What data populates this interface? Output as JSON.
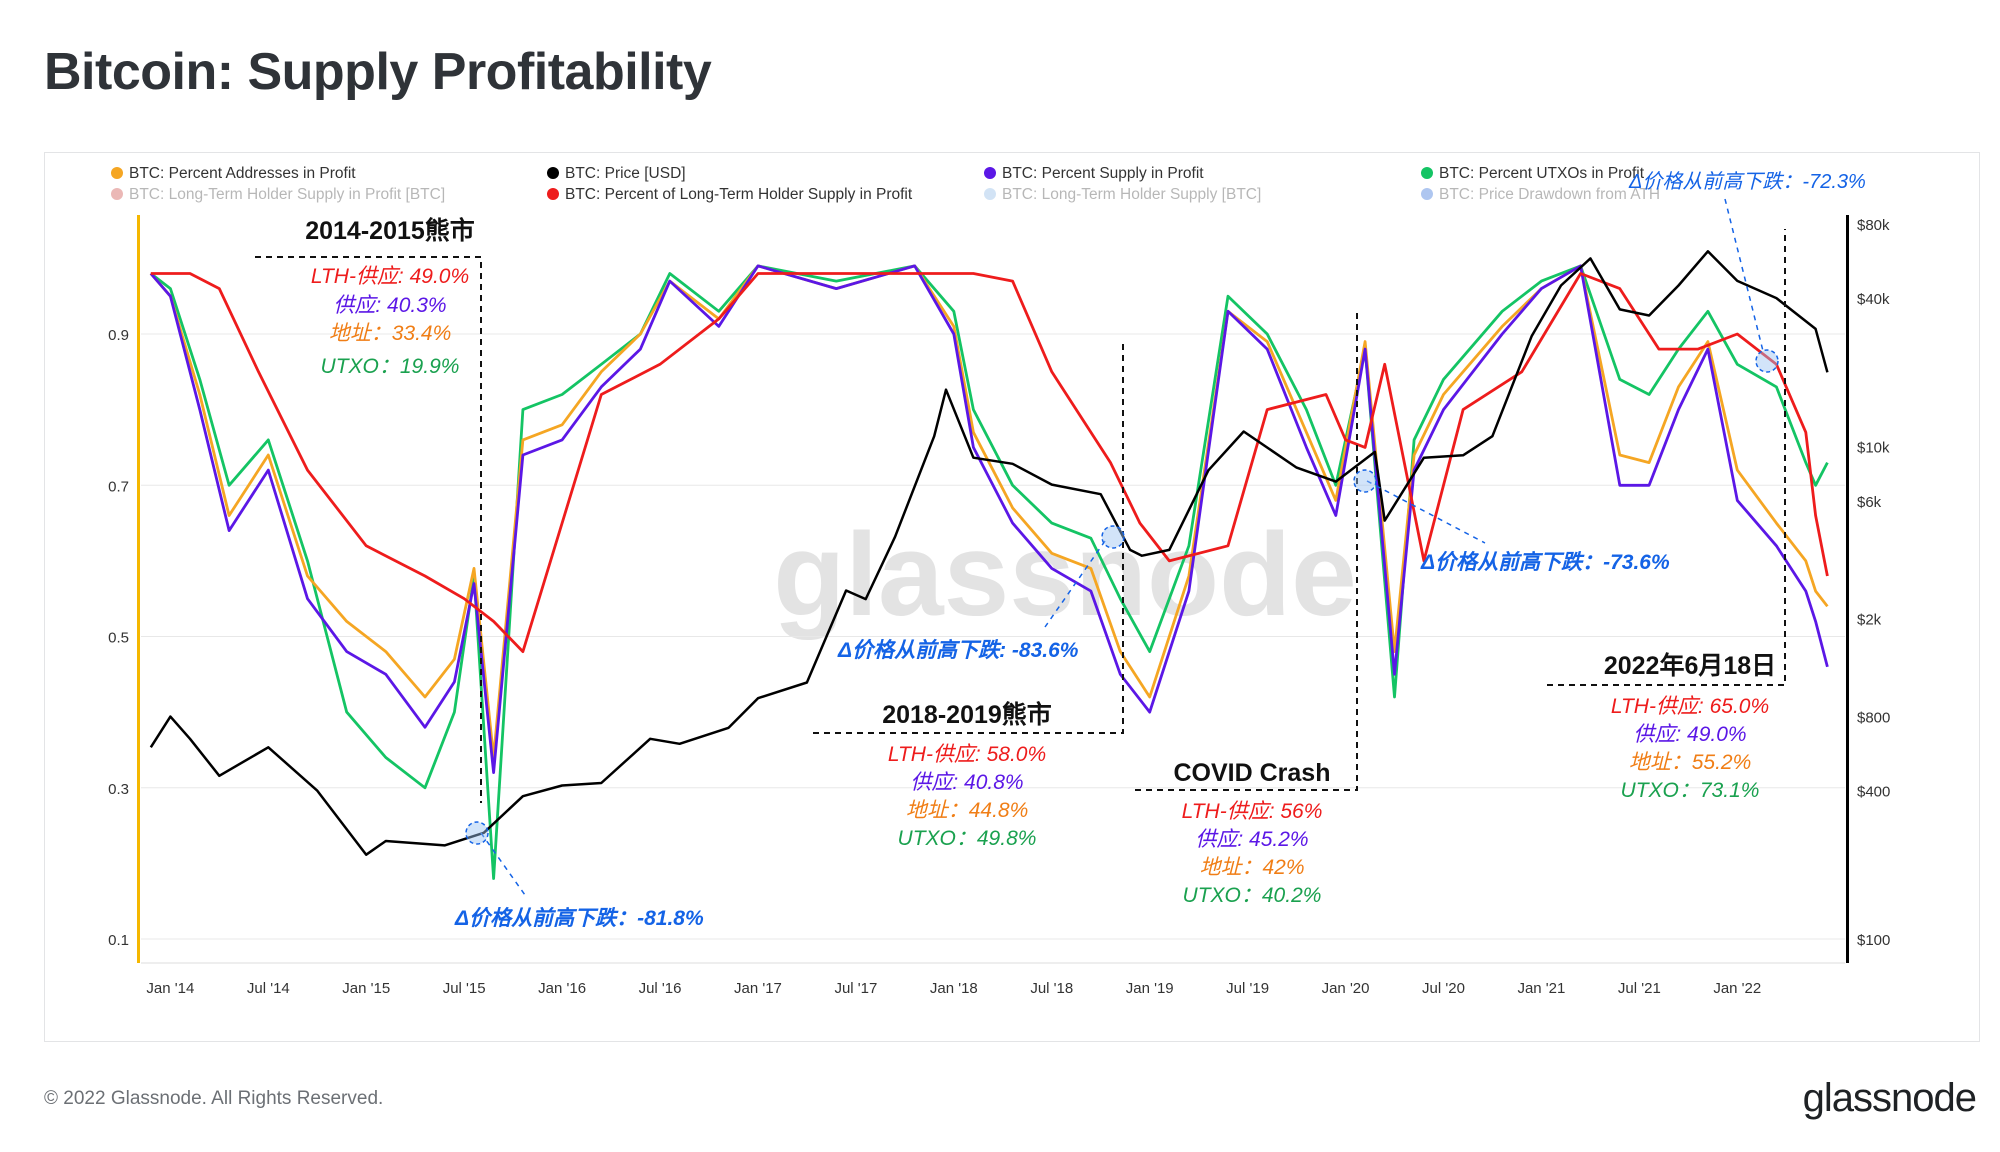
{
  "title": "Bitcoin: Supply Profitability",
  "footer": "© 2022 Glassnode. All Rights Reserved.",
  "brand": "glassnode",
  "watermark": "glassnode",
  "colors": {
    "addresses": "#f5a623",
    "price": "#000000",
    "supply": "#5b17e6",
    "utxo": "#14c464",
    "lth_supply_profit": "#c7332f",
    "lth_pct": "#ee1c1c",
    "lth_supply": "#7fb2e5",
    "drawdown": "#1a5fd6",
    "blue_text": "#1463e6",
    "orange_text": "#f07e16",
    "green_text": "#1aa14f"
  },
  "chart_data": {
    "type": "line",
    "x_ticks": [
      "Jan '14",
      "Jul '14",
      "Jan '15",
      "Jul '15",
      "Jan '16",
      "Jul '16",
      "Jan '17",
      "Jul '17",
      "Jan '18",
      "Jul '18",
      "Jan '19",
      "Jul '19",
      "Jan '20",
      "Jul '20",
      "Jan '21",
      "Jul '21",
      "Jan '22"
    ],
    "y_left_ticks": [
      "0.1",
      "0.3",
      "0.5",
      "0.7",
      "0.9"
    ],
    "y_right_ticks": [
      "$100",
      "$400",
      "$800",
      "$2k",
      "$6k",
      "$10k",
      "$40k",
      "$80k"
    ],
    "y_left_range": [
      0.1,
      1.0
    ],
    "y_right_range": [
      100,
      80000
    ],
    "y_right_scale": "log",
    "legend": [
      {
        "name": "BTC: Percent Addresses in Profit",
        "color": "#f5a623",
        "faded": false
      },
      {
        "name": "BTC: Price [USD]",
        "color": "#000000",
        "faded": false
      },
      {
        "name": "BTC: Percent Supply in Profit",
        "color": "#5b17e6",
        "faded": false
      },
      {
        "name": "BTC: Percent UTXOs in Profit",
        "color": "#14c464",
        "faded": false
      },
      {
        "name": "BTC: Long-Term Holder Supply in Profit [BTC]",
        "color": "#c7332f",
        "faded": true
      },
      {
        "name": "BTC: Percent of Long-Term Holder Supply in Profit",
        "color": "#ee1c1c",
        "faded": false
      },
      {
        "name": "BTC: Long-Term Holder Supply [BTC]",
        "color": "#7fb2e5",
        "faded": true
      },
      {
        "name": "BTC: Price Drawdown from ATH",
        "color": "#1a5fd6",
        "faded": true
      }
    ],
    "series": [
      {
        "name": "BTC: Price [USD]",
        "key": "price",
        "x": [
          2013.9,
          2014.0,
          2014.1,
          2014.25,
          2014.5,
          2014.75,
          2015.0,
          2015.1,
          2015.4,
          2015.6,
          2015.8,
          2016.0,
          2016.2,
          2016.45,
          2016.6,
          2016.85,
          2017.0,
          2017.25,
          2017.45,
          2017.55,
          2017.7,
          2017.9,
          2017.96,
          2018.1,
          2018.3,
          2018.5,
          2018.75,
          2018.9,
          2018.96,
          2019.1,
          2019.3,
          2019.48,
          2019.75,
          2019.95,
          2020.15,
          2020.2,
          2020.4,
          2020.6,
          2020.75,
          2020.95,
          2021.1,
          2021.25,
          2021.4,
          2021.55,
          2021.7,
          2021.85,
          2022.0,
          2022.2,
          2022.4,
          2022.46
        ],
        "y": [
          600,
          800,
          650,
          460,
          600,
          400,
          220,
          250,
          240,
          270,
          380,
          420,
          430,
          650,
          620,
          720,
          950,
          1100,
          2600,
          2400,
          4300,
          11000,
          17000,
          9000,
          8500,
          7000,
          6400,
          3800,
          3600,
          3800,
          8000,
          11500,
          8200,
          7200,
          9500,
          5000,
          9000,
          9200,
          11000,
          28000,
          45000,
          58000,
          36000,
          34000,
          45000,
          62000,
          47000,
          40000,
          30000,
          20000
        ]
      },
      {
        "name": "BTC: Percent of Long-Term Holder Supply in Profit",
        "key": "lth",
        "x": [
          2013.9,
          2014.1,
          2014.25,
          2014.45,
          2014.7,
          2015.0,
          2015.3,
          2015.5,
          2015.65,
          2015.8,
          2016.0,
          2016.2,
          2016.5,
          2016.8,
          2017.0,
          2017.3,
          2017.6,
          2017.9,
          2018.1,
          2018.3,
          2018.5,
          2018.8,
          2018.95,
          2019.1,
          2019.4,
          2019.6,
          2019.9,
          2020.0,
          2020.1,
          2020.2,
          2020.4,
          2020.6,
          2020.9,
          2021.2,
          2021.4,
          2021.6,
          2021.8,
          2022.0,
          2022.2,
          2022.35,
          2022.4,
          2022.46
        ],
        "y": [
          0.98,
          0.98,
          0.96,
          0.85,
          0.72,
          0.62,
          0.58,
          0.55,
          0.52,
          0.48,
          0.65,
          0.82,
          0.86,
          0.92,
          0.98,
          0.98,
          0.98,
          0.98,
          0.98,
          0.97,
          0.85,
          0.73,
          0.65,
          0.6,
          0.62,
          0.8,
          0.82,
          0.76,
          0.75,
          0.86,
          0.6,
          0.8,
          0.85,
          0.98,
          0.96,
          0.88,
          0.88,
          0.9,
          0.86,
          0.77,
          0.66,
          0.58
        ]
      },
      {
        "name": "BTC: Percent Supply in Profit",
        "key": "supply",
        "x": [
          2013.9,
          2014.0,
          2014.15,
          2014.3,
          2014.5,
          2014.7,
          2014.9,
          2015.1,
          2015.3,
          2015.45,
          2015.55,
          2015.65,
          2015.8,
          2016.0,
          2016.2,
          2016.4,
          2016.55,
          2016.8,
          2017.0,
          2017.4,
          2017.8,
          2018.0,
          2018.1,
          2018.3,
          2018.5,
          2018.7,
          2018.85,
          2019.0,
          2019.2,
          2019.4,
          2019.6,
          2019.8,
          2019.95,
          2020.1,
          2020.25,
          2020.35,
          2020.5,
          2020.8,
          2021.0,
          2021.2,
          2021.4,
          2021.55,
          2021.7,
          2021.85,
          2022.0,
          2022.2,
          2022.35,
          2022.4,
          2022.46
        ],
        "y": [
          0.98,
          0.95,
          0.8,
          0.64,
          0.72,
          0.55,
          0.48,
          0.45,
          0.38,
          0.44,
          0.57,
          0.32,
          0.74,
          0.76,
          0.83,
          0.88,
          0.97,
          0.91,
          0.99,
          0.96,
          0.99,
          0.9,
          0.75,
          0.65,
          0.59,
          0.56,
          0.45,
          0.4,
          0.56,
          0.93,
          0.88,
          0.75,
          0.66,
          0.88,
          0.45,
          0.72,
          0.8,
          0.9,
          0.96,
          0.99,
          0.7,
          0.7,
          0.8,
          0.88,
          0.68,
          0.62,
          0.56,
          0.52,
          0.46
        ]
      },
      {
        "name": "BTC: Percent Addresses in Profit",
        "key": "addresses",
        "x": [
          2013.9,
          2014.0,
          2014.15,
          2014.3,
          2014.5,
          2014.7,
          2014.9,
          2015.1,
          2015.3,
          2015.45,
          2015.55,
          2015.65,
          2015.8,
          2016.0,
          2016.2,
          2016.4,
          2016.55,
          2016.8,
          2017.0,
          2017.4,
          2017.8,
          2018.0,
          2018.1,
          2018.3,
          2018.5,
          2018.7,
          2018.85,
          2019.0,
          2019.2,
          2019.4,
          2019.6,
          2019.8,
          2019.95,
          2020.1,
          2020.25,
          2020.35,
          2020.5,
          2020.8,
          2021.0,
          2021.2,
          2021.4,
          2021.55,
          2021.7,
          2021.85,
          2022.0,
          2022.2,
          2022.35,
          2022.4,
          2022.46
        ],
        "y": [
          0.98,
          0.95,
          0.82,
          0.66,
          0.74,
          0.58,
          0.52,
          0.48,
          0.42,
          0.47,
          0.59,
          0.34,
          0.76,
          0.78,
          0.85,
          0.9,
          0.97,
          0.92,
          0.99,
          0.96,
          0.99,
          0.91,
          0.77,
          0.67,
          0.61,
          0.59,
          0.48,
          0.42,
          0.58,
          0.93,
          0.89,
          0.77,
          0.68,
          0.89,
          0.48,
          0.74,
          0.82,
          0.91,
          0.96,
          0.99,
          0.74,
          0.73,
          0.83,
          0.89,
          0.72,
          0.65,
          0.6,
          0.56,
          0.54
        ]
      },
      {
        "name": "BTC: Percent UTXOs in Profit",
        "key": "utxo",
        "x": [
          2013.9,
          2014.0,
          2014.15,
          2014.3,
          2014.5,
          2014.7,
          2014.9,
          2015.1,
          2015.3,
          2015.45,
          2015.55,
          2015.65,
          2015.8,
          2016.0,
          2016.2,
          2016.4,
          2016.55,
          2016.8,
          2017.0,
          2017.4,
          2017.8,
          2018.0,
          2018.1,
          2018.3,
          2018.5,
          2018.7,
          2018.85,
          2019.0,
          2019.2,
          2019.4,
          2019.6,
          2019.8,
          2019.95,
          2020.1,
          2020.25,
          2020.35,
          2020.5,
          2020.8,
          2021.0,
          2021.2,
          2021.4,
          2021.55,
          2021.7,
          2021.85,
          2022.0,
          2022.2,
          2022.35,
          2022.4,
          2022.46
        ],
        "y": [
          0.98,
          0.96,
          0.84,
          0.7,
          0.76,
          0.6,
          0.4,
          0.34,
          0.3,
          0.4,
          0.58,
          0.18,
          0.8,
          0.82,
          0.86,
          0.9,
          0.98,
          0.93,
          0.99,
          0.97,
          0.99,
          0.93,
          0.8,
          0.7,
          0.65,
          0.63,
          0.55,
          0.48,
          0.62,
          0.95,
          0.9,
          0.8,
          0.7,
          0.88,
          0.42,
          0.76,
          0.84,
          0.93,
          0.97,
          0.99,
          0.84,
          0.82,
          0.88,
          0.93,
          0.86,
          0.83,
          0.73,
          0.7,
          0.73
        ]
      }
    ],
    "annotations": {
      "bear_2014": {
        "title": "2014-2015熊市",
        "lth": "LTH-供应: 49.0%",
        "supply": "供应: 40.3%",
        "addr": "地址：33.4%",
        "utxo": "UTXO：19.9%"
      },
      "bear_2018": {
        "title": "2018-2019熊市",
        "lth": "LTH-供应: 58.0%",
        "supply": "供应: 40.8%",
        "addr": "地址：44.8%",
        "utxo": "UTXO：49.8%"
      },
      "covid": {
        "title": "COVID Crash",
        "lth": "LTH-供应: 56%",
        "supply": "供应: 45.2%",
        "addr": "地址：42%",
        "utxo": "UTXO：40.2%"
      },
      "jun2022": {
        "title": "2022年6月18日",
        "lth": "LTH-供应: 65.0%",
        "supply": "供应: 49.0%",
        "addr": "地址：55.2%",
        "utxo": "UTXO：73.1%"
      },
      "dd_2015": "Δ价格从前高下跌：-81.8%",
      "dd_2018": "Δ价格从前高下跌: -83.6%",
      "dd_2020": "Δ价格从前高下跌：-73.6%",
      "dd_2022": "Δ价格从前高下跌：-72.3%"
    }
  }
}
